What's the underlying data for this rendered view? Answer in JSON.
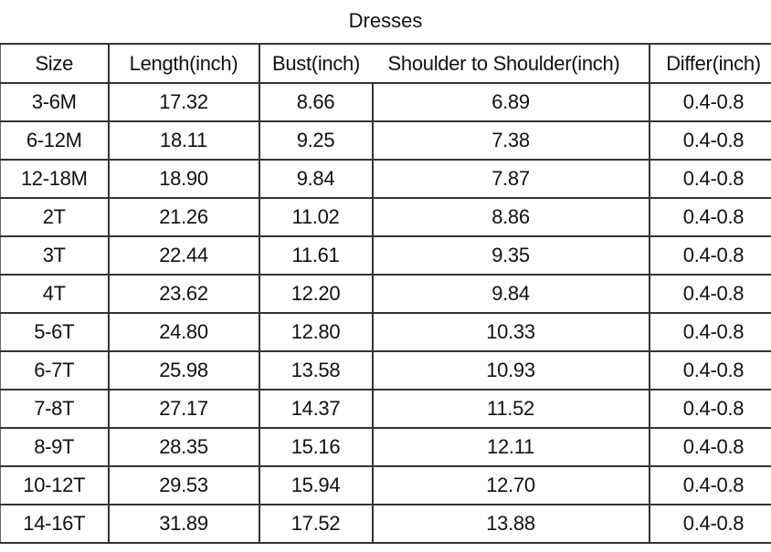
{
  "title": "Dresses",
  "columns": [
    "Size",
    "Length(inch)",
    "Bust(inch)",
    "Shoulder to Shoulder(inch)",
    "Differ(inch)"
  ],
  "rows": [
    [
      "3-6M",
      "17.32",
      "8.66",
      "6.89",
      "0.4-0.8"
    ],
    [
      "6-12M",
      "18.11",
      "9.25",
      "7.38",
      "0.4-0.8"
    ],
    [
      "12-18M",
      "18.90",
      "9.84",
      "7.87",
      "0.4-0.8"
    ],
    [
      "2T",
      "21.26",
      "11.02",
      "8.86",
      "0.4-0.8"
    ],
    [
      "3T",
      "22.44",
      "11.61",
      "9.35",
      "0.4-0.8"
    ],
    [
      "4T",
      "23.62",
      "12.20",
      "9.84",
      "0.4-0.8"
    ],
    [
      "5-6T",
      "24.80",
      "12.80",
      "10.33",
      "0.4-0.8"
    ],
    [
      "6-7T",
      "25.98",
      "13.58",
      "10.93",
      "0.4-0.8"
    ],
    [
      "7-8T",
      "27.17",
      "14.37",
      "11.52",
      "0.4-0.8"
    ],
    [
      "8-9T",
      "28.35",
      "15.16",
      "12.11",
      "0.4-0.8"
    ],
    [
      "10-12T",
      "29.53",
      "15.94",
      "12.70",
      "0.4-0.8"
    ],
    [
      "14-16T",
      "31.89",
      "17.52",
      "13.88",
      "0.4-0.8"
    ]
  ]
}
